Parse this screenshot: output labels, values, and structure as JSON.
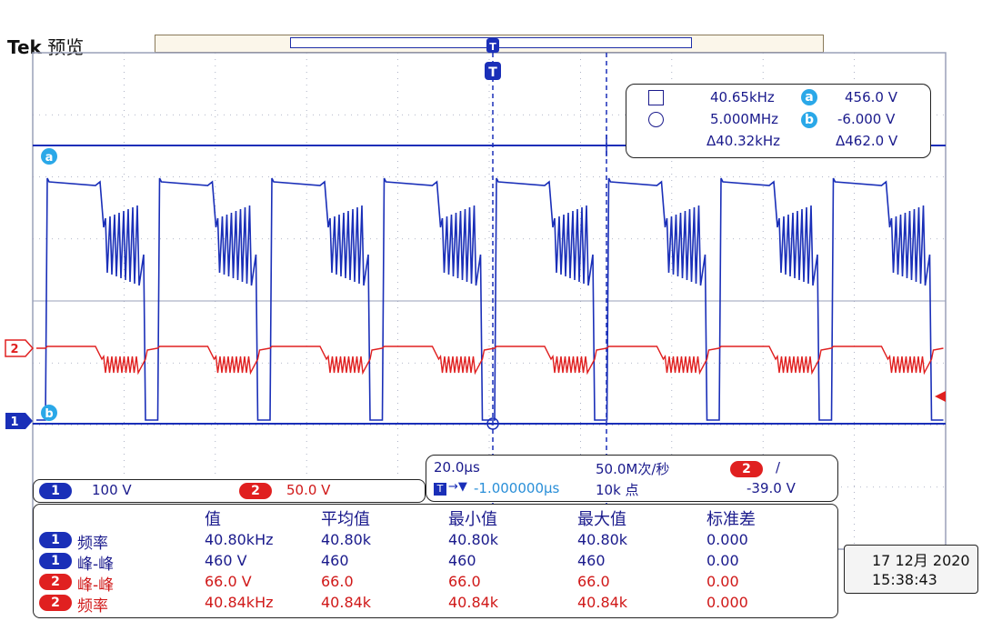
{
  "header": {
    "brand": "Tek",
    "mode": "预览"
  },
  "markers": {
    "trigger": "T",
    "cursor_a": "a",
    "cursor_b": "b",
    "ch1": "1",
    "ch2": "2"
  },
  "cursor_readout": {
    "square_value": "40.65kHz",
    "circle_value": "5.000MHz",
    "delta_value": "Δ40.32kHz",
    "a_value": "456.0 V",
    "b_value": "-6.000 V",
    "delta_v": "Δ462.0 V"
  },
  "channels": {
    "ch1": {
      "label": "1",
      "scale": "100 V",
      "color": "#1a2fb8"
    },
    "ch2": {
      "label": "2",
      "scale": "50.0 V",
      "color": "#e02020"
    }
  },
  "horizontal": {
    "time_div": "20.0µs",
    "sample_rate": "50.0M次/秒",
    "position": "-1.000000µs",
    "record_length": "10k 点",
    "trigger_channel": "2",
    "trigger_slope": "/",
    "trigger_level": "-39.0 V"
  },
  "measurements": {
    "headers": [
      "值",
      "平均值",
      "最小值",
      "最大值",
      "标准差"
    ],
    "rows": [
      {
        "ch": "1",
        "name": "频率",
        "value": "40.80kHz",
        "mean": "40.80k",
        "min": "40.80k",
        "max": "40.80k",
        "std": "0.000"
      },
      {
        "ch": "1",
        "name": "峰-峰",
        "value": "460 V",
        "mean": "460",
        "min": "460",
        "max": "460",
        "std": "0.00"
      },
      {
        "ch": "2",
        "name": "峰-峰",
        "value": "66.0 V",
        "mean": "66.0",
        "min": "66.0",
        "max": "66.0",
        "std": "0.00"
      },
      {
        "ch": "2",
        "name": "频率",
        "value": "40.84kHz",
        "mean": "40.84k",
        "min": "40.84k",
        "max": "40.84k",
        "std": "0.000"
      }
    ]
  },
  "clock": {
    "date": "17 12月 2020",
    "time": "15:38:43"
  },
  "colors": {
    "grid": "#9aa0b8",
    "ch1": "#1a2fb8",
    "ch2": "#e02020",
    "cursor": "#1a2fb8"
  }
}
